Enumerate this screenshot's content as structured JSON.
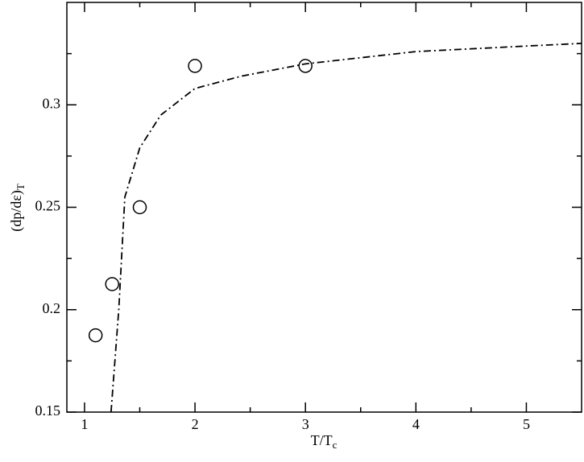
{
  "chart_data": {
    "type": "scatter",
    "x_label": "T/T",
    "x_label_sub": "c",
    "y_label": "(dp/dε)",
    "y_label_sub": "T",
    "xlim": [
      0.84,
      5.5
    ],
    "ylim": [
      0.15,
      0.35
    ],
    "xticks": [
      1,
      2,
      3,
      4,
      5
    ],
    "yticks": [
      0.15,
      0.2,
      0.25,
      0.3
    ],
    "xminor_ticks": [
      1.5,
      2.5,
      3.5,
      4.5
    ],
    "yminor_ticks": [
      0.175,
      0.225,
      0.275,
      0.325
    ],
    "color": "#000000",
    "points": {
      "x": [
        1.1,
        1.25,
        1.5,
        2.0,
        3.0
      ],
      "values": [
        0.1875,
        0.2125,
        0.25,
        0.319,
        0.319
      ]
    },
    "curve": {
      "x": [
        1.24,
        1.31,
        1.365,
        1.5,
        1.69,
        2.0,
        2.42,
        3.0,
        4.0,
        5.0,
        5.5
      ],
      "values": [
        0.15,
        0.2,
        0.255,
        0.279,
        0.295,
        0.308,
        0.314,
        0.32,
        0.326,
        0.3287,
        0.33
      ]
    }
  }
}
